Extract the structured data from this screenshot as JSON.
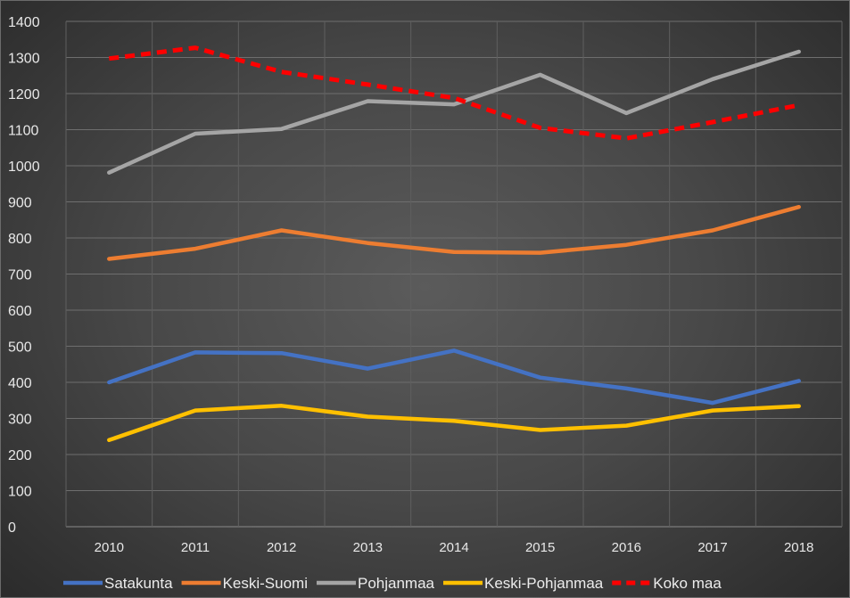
{
  "chart_data": {
    "type": "line",
    "title": "",
    "xlabel": "",
    "ylabel": "",
    "x": [
      "2010",
      "2011",
      "2012",
      "2013",
      "2014",
      "2015",
      "2016",
      "2017",
      "2018"
    ],
    "ylim": [
      0,
      1400
    ],
    "yticks": [
      "0",
      "100",
      "200",
      "300",
      "400",
      "500",
      "600",
      "700",
      "800",
      "900",
      "1000",
      "1100",
      "1200",
      "1300",
      "1400"
    ],
    "grid": true,
    "legend_position": "bottom",
    "series": [
      {
        "name": "Satakunta",
        "color": "#4472c4",
        "dash": false,
        "values": [
          400,
          483,
          481,
          438,
          488,
          413,
          383,
          343,
          404
        ]
      },
      {
        "name": "Keski-Suomi",
        "color": "#ed7d31",
        "dash": false,
        "values": [
          742,
          770,
          821,
          786,
          761,
          759,
          781,
          821,
          886
        ]
      },
      {
        "name": "Pohjanmaa",
        "color": "#a5a5a5",
        "dash": false,
        "values": [
          981,
          1089,
          1102,
          1179,
          1170,
          1252,
          1146,
          1240,
          1316
        ]
      },
      {
        "name": "Keski-Pohjanmaa",
        "color": "#ffc000",
        "dash": false,
        "values": [
          240,
          322,
          335,
          305,
          293,
          268,
          280,
          322,
          334
        ]
      },
      {
        "name": "Koko maa",
        "color": "#ff0000",
        "dash": true,
        "values": [
          1297,
          1327,
          1260,
          1225,
          1188,
          1105,
          1076,
          1121,
          1168
        ]
      }
    ]
  }
}
